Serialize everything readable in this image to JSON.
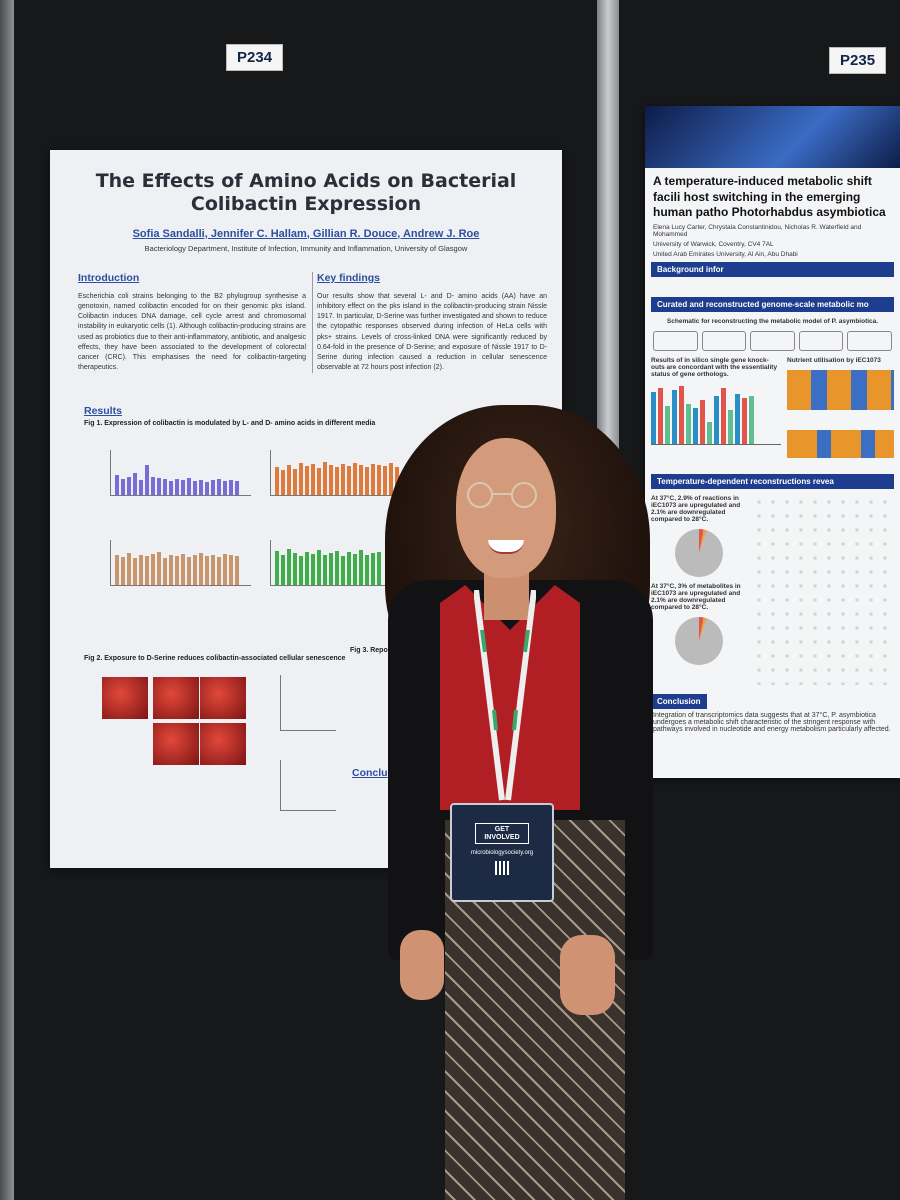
{
  "scene": {
    "board_labels": {
      "left": "P234",
      "right": "P235"
    }
  },
  "poster_left": {
    "title": "The Effects of Amino Acids on Bacterial Colibactin Expression",
    "authors": "Sofia Sandalli, Jennifer C. Hallam, Gillian R. Douce, Andrew J. Roe",
    "affiliation": "Bacteriology Department, Institute of Infection, Immunity and Inflammation, University of Glasgow",
    "introduction_heading": "Introduction",
    "introduction_text": "Escherichia coli strains belonging to the B2 phylogroup synthesise a genotoxin, named colibactin encoded for on their genomic pks island. Colibactin induces DNA damage, cell cycle arrest and chromosomal instability in eukaryotic cells (1). Although colibactin-producing strains are used as probiotics due to their anti-inflammatory, antibiotic, and analgesic effects, they have been associated to the development of colorectal cancer (CRC). This emphasises the need for colibactin-targeting therapeutics.",
    "key_findings_heading": "Key findings",
    "key_findings_text": "Our results show that several L- and D- amino acids (AA) have an inhibitory effect on the pks island in the colibactin-producing strain Nissle 1917. In particular, D-Serine was further investigated and shown to reduce the cytopathic responses observed during infection of HeLa cells with pks+ strains. Levels of cross-linked DNA were significantly reduced by 0.64-fold in the presence of D-Serine; and exposure of Nissle 1917 to D-Serine during infection caused a reduction in cellular senescence observable at 72 hours post infection (2).",
    "results_heading": "Results",
    "fig1_title": "Fig 1. Expression of colibactin is modulated by L- and D- amino acids in different media",
    "fig2_title": "Fig 2. Exposure to D-Serine reduces colibactin-associated cellular senescence",
    "fig3_title": "Fig 3. Repo",
    "conclusion_heading": "Conclu"
  },
  "poster_right": {
    "title": "A temperature-induced metabolic shift facili host switching in the emerging human patho Photorhabdus asymbiotica",
    "authors": "Elena Lucy Carter, Chrystala Constantinidou, Nicholas R. Waterfield and Mohammed",
    "affil1": "University of Warwick, Coventry, CV4 7AL",
    "affil2": "United Arab Emirates University, Al Ain, Abu Dhabi",
    "section1": "Background infor",
    "section2": "Curated and reconstructed genome-scale metabolic mo",
    "schematic": "Schematic for reconstructing the metabolic model of P. asymbiotica.",
    "chart_caption": "Results of in silico single gene knock-outs are concordant with the essentiality status of gene orthologs.",
    "nutrient": "Nutrient utilisation by iEC1073",
    "section3": "Temperature-dependent reconstructions revea",
    "stat1": "At 37°C, 2.9% of reactions in iEC1073 are upregulated and 2.1% are downregulated compared to 28°C.",
    "stat2": "At 37°C, 3% of metabolites in iEC1073 are upregulated and 2.1% are downregulated compared to 28°C.",
    "conclusion_heading": "Conclusion",
    "conclusion_text": "Integration of transcriptomics data suggests that at 37°C, P. asymbiotica undergoes a metabolic shift characteristic of the stringent response with pathways involved in nucleotide and energy metabolism particularly affected."
  },
  "badge": {
    "text": "GET INVOLVED",
    "url": "microbiologysociety.org"
  }
}
